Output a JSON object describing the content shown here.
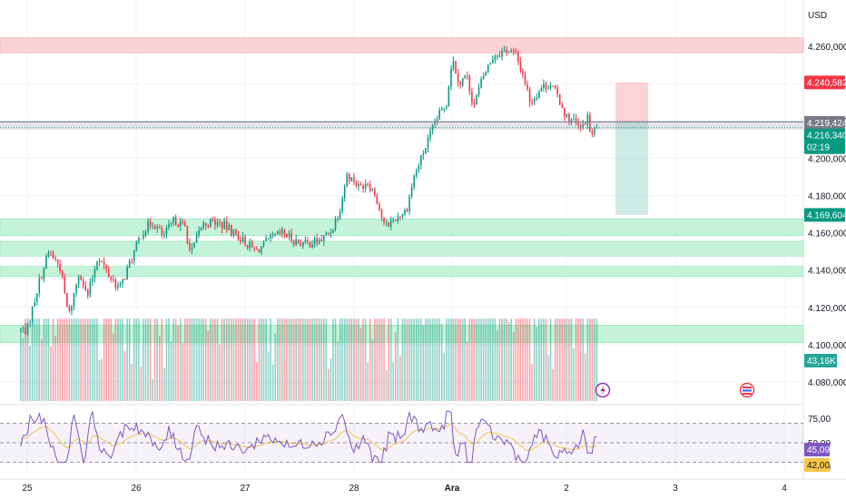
{
  "currency": "USD",
  "chart_data": {
    "type": "candlestick",
    "price_axis": {
      "range": [
        4070000,
        4275000
      ],
      "ticks": [
        "4.260,000",
        "4.240,000",
        "4.220,000",
        "4.200,000",
        "4.180,000",
        "4.160,000",
        "4.140,000",
        "4.120,000",
        "4.100,000",
        "4.080,000"
      ],
      "tick_values": [
        4260000,
        4240000,
        4220000,
        4200000,
        4180000,
        4160000,
        4140000,
        4120000,
        4100000,
        4080000
      ]
    },
    "time_axis": {
      "range": [
        24.95,
        29.25
      ],
      "labels": [
        "25",
        "26",
        "27",
        "28",
        "Ara",
        "2",
        "3",
        "4"
      ],
      "positions": [
        25,
        26,
        27,
        28,
        28.9,
        29.95,
        30.95,
        31.95
      ]
    },
    "grid": true,
    "zones": [
      {
        "kind": "resistance",
        "from": 4256500,
        "to": 4264500,
        "color": "#f7c4c8"
      },
      {
        "kind": "support",
        "from": 4158500,
        "to": 4167500,
        "color": "#b7f0d0"
      },
      {
        "kind": "support",
        "from": 4147500,
        "to": 4155500,
        "color": "#b7f0d0"
      },
      {
        "kind": "support",
        "from": 4136500,
        "to": 4142000,
        "color": "#b7f0d0"
      },
      {
        "kind": "support",
        "from": 4101000,
        "to": 4110500,
        "color": "#b7f0d0"
      }
    ],
    "position_tool": {
      "x_from": 30.4,
      "x_to": 30.7,
      "entry": 4219424,
      "stop": 4240582,
      "target": 4169604
    },
    "price_labels": [
      {
        "text": "4.240,582",
        "value": 4240582,
        "color": "#f23645"
      },
      {
        "text": "4.219,424",
        "value": 4219424,
        "color": "#787b86"
      },
      {
        "text": "4.216,340",
        "value": 4216340,
        "color": "#089981",
        "extra": "02:19"
      },
      {
        "text": "4.169,604",
        "value": 4169604,
        "color": "#089981"
      }
    ],
    "volume_label": "43,16K",
    "key_prices": [
      {
        "t": 25.0,
        "p": 4108000
      },
      {
        "t": 25.1,
        "p": 4132000
      },
      {
        "t": 25.2,
        "p": 4150000
      },
      {
        "t": 25.3,
        "p": 4142000
      },
      {
        "t": 25.38,
        "p": 4115000
      },
      {
        "t": 25.48,
        "p": 4140000
      },
      {
        "t": 25.55,
        "p": 4125000
      },
      {
        "t": 25.65,
        "p": 4148000
      },
      {
        "t": 25.75,
        "p": 4137000
      },
      {
        "t": 25.85,
        "p": 4130000
      },
      {
        "t": 25.95,
        "p": 4145000
      },
      {
        "t": 26.05,
        "p": 4160000
      },
      {
        "t": 26.15,
        "p": 4166000
      },
      {
        "t": 26.25,
        "p": 4158000
      },
      {
        "t": 26.35,
        "p": 4167000
      },
      {
        "t": 26.45,
        "p": 4163000
      },
      {
        "t": 26.5,
        "p": 4148000
      },
      {
        "t": 26.6,
        "p": 4164000
      },
      {
        "t": 26.7,
        "p": 4166000
      },
      {
        "t": 26.8,
        "p": 4164000
      },
      {
        "t": 26.9,
        "p": 4160000
      },
      {
        "t": 27.0,
        "p": 4155000
      },
      {
        "t": 27.1,
        "p": 4150000
      },
      {
        "t": 27.25,
        "p": 4157000
      },
      {
        "t": 27.35,
        "p": 4160000
      },
      {
        "t": 27.45,
        "p": 4156000
      },
      {
        "t": 27.55,
        "p": 4154000
      },
      {
        "t": 27.7,
        "p": 4156000
      },
      {
        "t": 27.8,
        "p": 4162000
      },
      {
        "t": 27.88,
        "p": 4175000
      },
      {
        "t": 27.93,
        "p": 4191000
      },
      {
        "t": 28.0,
        "p": 4188000
      },
      {
        "t": 28.05,
        "p": 4184000
      },
      {
        "t": 28.12,
        "p": 4188000
      },
      {
        "t": 28.2,
        "p": 4180000
      },
      {
        "t": 28.28,
        "p": 4163000
      },
      {
        "t": 28.38,
        "p": 4168000
      },
      {
        "t": 28.48,
        "p": 4172000
      },
      {
        "t": 28.55,
        "p": 4190000
      },
      {
        "t": 28.65,
        "p": 4205000
      },
      {
        "t": 28.75,
        "p": 4220000
      },
      {
        "t": 28.85,
        "p": 4230000
      },
      {
        "t": 28.9,
        "p": 4254000
      },
      {
        "t": 28.97,
        "p": 4240000
      },
      {
        "t": 29.03,
        "p": 4245000
      },
      {
        "t": 29.1,
        "p": 4228000
      },
      {
        "t": 29.18,
        "p": 4243000
      },
      {
        "t": 29.28,
        "p": 4255000
      },
      {
        "t": 29.4,
        "p": 4258000
      },
      {
        "t": 29.48,
        "p": 4256000
      },
      {
        "t": 29.55,
        "p": 4245000
      },
      {
        "t": 29.62,
        "p": 4230000
      },
      {
        "t": 29.72,
        "p": 4238000
      },
      {
        "t": 29.8,
        "p": 4240000
      },
      {
        "t": 29.88,
        "p": 4232000
      },
      {
        "t": 29.95,
        "p": 4222000
      },
      {
        "t": 30.02,
        "p": 4220000
      },
      {
        "t": 30.08,
        "p": 4215000
      },
      {
        "t": 30.14,
        "p": 4222000
      },
      {
        "t": 30.18,
        "p": 4212000
      },
      {
        "t": 30.24,
        "p": 4217000
      }
    ],
    "rsi": {
      "ticks": [
        "75,00",
        "50,00",
        "25,00"
      ],
      "tick_values": [
        75,
        50,
        25
      ],
      "levels": [
        70,
        50,
        30
      ],
      "range": [
        25,
        87
      ],
      "value_label": "45,09",
      "ma_label": "42,00",
      "value": 45.09,
      "ma": 42.0
    }
  }
}
